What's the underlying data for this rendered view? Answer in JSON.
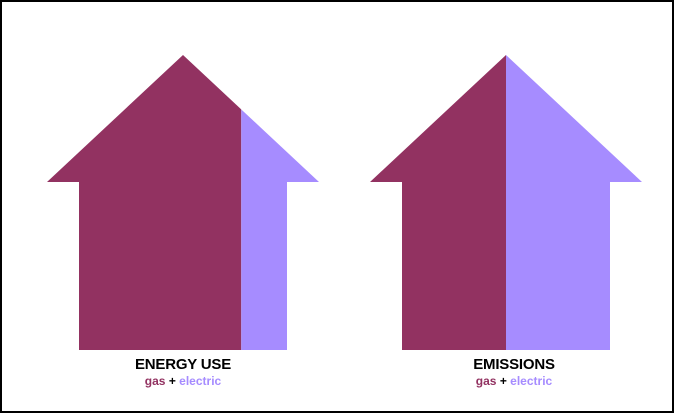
{
  "colors": {
    "gas": "#923261",
    "electric": "#a68cff"
  },
  "legend": {
    "gas": "gas",
    "plus": "+",
    "electric": "electric"
  },
  "chart_data": [
    {
      "type": "bar",
      "title": "ENERGY USE",
      "stacked": true,
      "series": [
        {
          "name": "gas",
          "value": 0.78
        },
        {
          "name": "electric",
          "value": 0.22
        }
      ]
    },
    {
      "type": "bar",
      "title": "EMISSIONS",
      "stacked": true,
      "series": [
        {
          "name": "gas",
          "value": 0.5
        },
        {
          "name": "electric",
          "value": 0.5
        }
      ]
    }
  ]
}
